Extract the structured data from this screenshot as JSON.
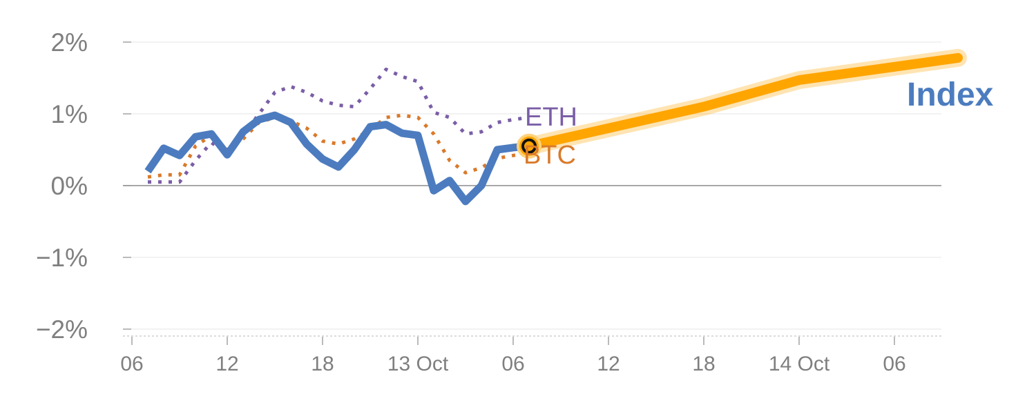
{
  "chart_data": {
    "type": "line",
    "title": "",
    "xlabel": "",
    "ylabel": "",
    "ylim": [
      -2,
      2
    ],
    "xlim": [
      6,
      59
    ],
    "x_unit": "hours since 12 Oct 00:00",
    "y_unit": "%",
    "grid": true,
    "yticks": [
      {
        "value": 2,
        "label": "2%"
      },
      {
        "value": 1,
        "label": "1%"
      },
      {
        "value": 0,
        "label": "0%"
      },
      {
        "value": -1,
        "label": "−1%"
      },
      {
        "value": -2,
        "label": "−2%"
      }
    ],
    "xticks": [
      {
        "value": 6,
        "label": "06"
      },
      {
        "value": 12,
        "label": "12"
      },
      {
        "value": 18,
        "label": "18"
      },
      {
        "value": 24,
        "label": "13 Oct"
      },
      {
        "value": 30,
        "label": "06"
      },
      {
        "value": 36,
        "label": "12"
      },
      {
        "value": 42,
        "label": "18"
      },
      {
        "value": 48,
        "label": "14 Oct"
      },
      {
        "value": 54,
        "label": "06"
      }
    ],
    "series": [
      {
        "name": "ETH",
        "color": "#7a5ea6",
        "style": "dotted",
        "x": [
          7,
          8,
          9,
          10,
          11,
          12,
          13,
          14,
          15,
          16,
          17,
          18,
          19,
          20,
          21,
          22,
          23,
          24,
          25,
          26,
          27,
          28,
          29,
          30,
          31
        ],
        "y": [
          0.05,
          0.05,
          0.05,
          0.35,
          0.6,
          0.45,
          0.7,
          1.0,
          1.3,
          1.38,
          1.3,
          1.18,
          1.12,
          1.1,
          1.35,
          1.62,
          1.52,
          1.45,
          1.02,
          0.95,
          0.72,
          0.75,
          0.88,
          0.92,
          0.95
        ]
      },
      {
        "name": "BTC",
        "color": "#d97a2b",
        "style": "dotted",
        "x": [
          7,
          8,
          9,
          10,
          11,
          12,
          13,
          14,
          15,
          16,
          17,
          18,
          19,
          20,
          21,
          22,
          23,
          24,
          25,
          26,
          27,
          28,
          29,
          30,
          31
        ],
        "y": [
          0.12,
          0.15,
          0.15,
          0.55,
          0.7,
          0.5,
          0.65,
          0.88,
          0.95,
          0.9,
          0.8,
          0.62,
          0.58,
          0.65,
          0.78,
          0.95,
          0.98,
          0.95,
          0.72,
          0.35,
          0.18,
          0.25,
          0.38,
          0.42,
          0.45
        ]
      },
      {
        "name": "Index",
        "color": "#4c7cbf",
        "style": "solid",
        "x": [
          7,
          8,
          9,
          10,
          11,
          12,
          13,
          14,
          15,
          16,
          17,
          18,
          19,
          20,
          21,
          22,
          23,
          24,
          25,
          26,
          27,
          28,
          29,
          30,
          31
        ],
        "y": [
          0.2,
          0.52,
          0.42,
          0.68,
          0.72,
          0.43,
          0.75,
          0.92,
          0.98,
          0.88,
          0.58,
          0.37,
          0.26,
          0.5,
          0.82,
          0.85,
          0.73,
          0.7,
          -0.07,
          0.07,
          -0.22,
          0.0,
          0.5,
          0.53,
          0.55
        ]
      }
    ],
    "projection": {
      "color": "#ffa500",
      "x": [
        31,
        42,
        48,
        58
      ],
      "y": [
        0.55,
        1.1,
        1.47,
        1.78
      ]
    },
    "marker": {
      "x": 31,
      "y": 0.55
    },
    "colors": {
      "grid": "#e6e6e6",
      "zero_line": "#8c8c8c",
      "tick_text": "#7f7f7f"
    }
  }
}
